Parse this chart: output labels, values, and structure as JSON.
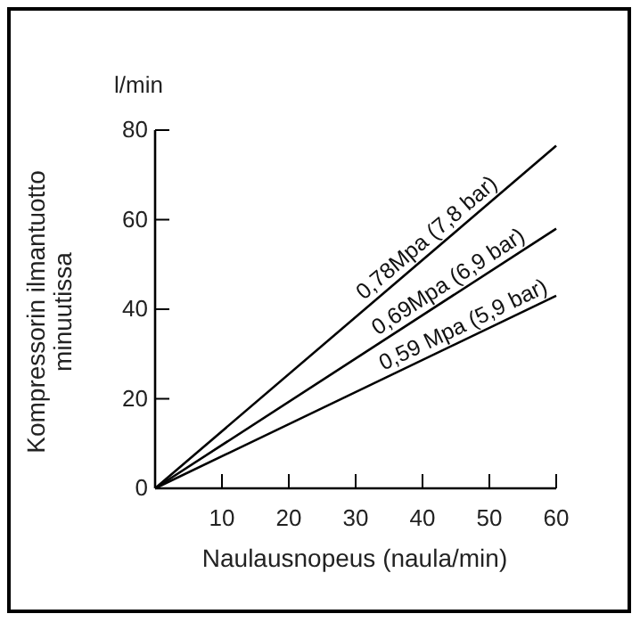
{
  "chart_data": {
    "type": "line",
    "xlabel": "Naulausnopeus (naula/min)",
    "ylabel": "Kompressorin ilmantuotto minuutissa",
    "annotations": [
      "l/min"
    ],
    "x": [
      0,
      60
    ],
    "xlim": [
      0,
      60
    ],
    "ylim": [
      0,
      80
    ],
    "xticks": [
      10,
      20,
      30,
      40,
      50,
      60
    ],
    "yticks": [
      0,
      20,
      40,
      60,
      80
    ],
    "grid": false,
    "marker": "none",
    "line_style": "solid",
    "series": [
      {
        "name": "0,78Mpa (7,8 bar)",
        "color": "#000000",
        "values": [
          0,
          76.5
        ]
      },
      {
        "name": "0,69Mpa (6,9 bar)",
        "color": "#000000",
        "values": [
          0,
          58
        ]
      },
      {
        "name": "0,59 Mpa (5,9 bar)",
        "color": "#000000",
        "values": [
          0,
          43
        ]
      }
    ]
  }
}
